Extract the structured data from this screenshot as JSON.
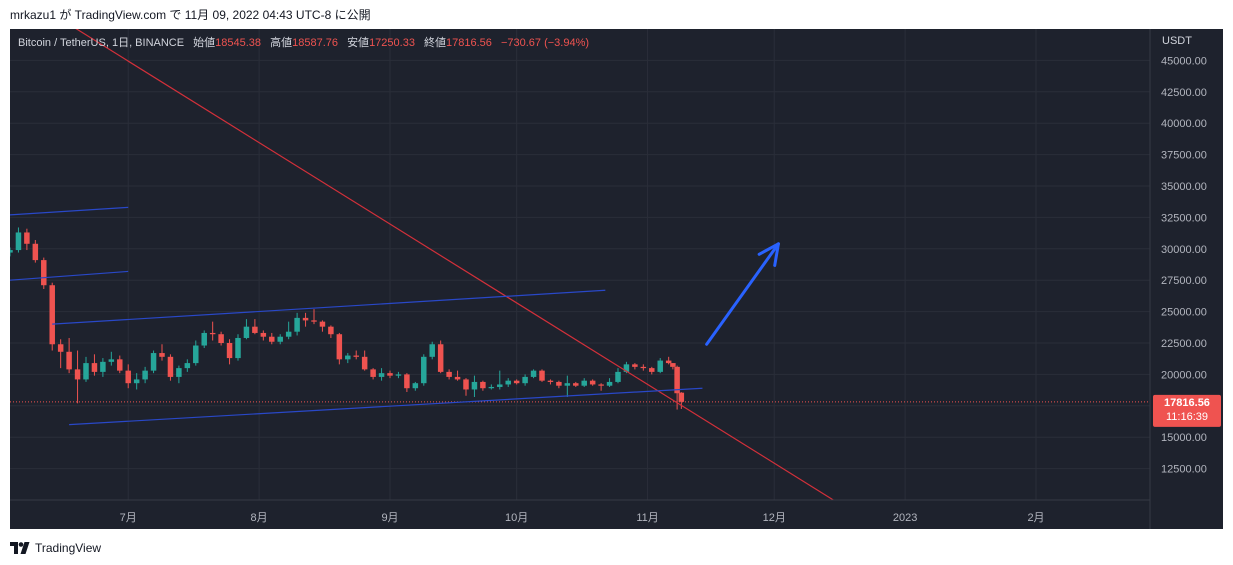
{
  "header": {
    "published_by": "mrkazu1 が TradingView.com で 11月 09, 2022 04:43 UTC-8 に公開"
  },
  "legend": {
    "symbol": "Bitcoin / TetherUS, 1日, BINANCE",
    "open_label": "始値",
    "open_value": "18545.38",
    "high_label": "高値",
    "high_value": "18587.76",
    "low_label": "安値",
    "low_value": "17250.33",
    "close_label": "終値",
    "close_value": "17816.56",
    "change": "−730.67 (−3.94%)"
  },
  "price_axis": {
    "currency": "USDT",
    "ticks": [
      "45000.00",
      "42500.00",
      "40000.00",
      "37500.00",
      "35000.00",
      "32500.00",
      "30000.00",
      "27500.00",
      "25000.00",
      "22500.00",
      "20000.00",
      "17500.00",
      "15000.00",
      "12500.00"
    ]
  },
  "time_axis": {
    "labels": [
      "7月",
      "8月",
      "9月",
      "10月",
      "11月",
      "12月",
      "2023",
      "2月"
    ]
  },
  "last_price": {
    "price": "17816.56",
    "countdown": "11:16:39"
  },
  "footer": {
    "brand": "TradingView"
  },
  "colors": {
    "background": "#1e222d",
    "up": "#26a69a",
    "down": "#ef5350",
    "grid": "#2a2e39",
    "trendline_red": "#d2303a",
    "channel_blue": "#2948c8",
    "arrow_blue": "#2962ff",
    "last_price_badge": "#ef5350"
  },
  "chart_data": {
    "type": "candlestick",
    "title": "Bitcoin / TetherUS, 1日, BINANCE",
    "xlabel": "",
    "ylabel": "USDT",
    "ylim": [
      10000,
      47500
    ],
    "x_range": [
      "2022-06-03",
      "2023-02-28"
    ],
    "grid": true,
    "candles": [
      {
        "date": "2022-06-03",
        "open": 29700,
        "high": 30100,
        "low": 29400,
        "close": 29900
      },
      {
        "date": "2022-06-05",
        "open": 29900,
        "high": 31700,
        "low": 29700,
        "close": 31300
      },
      {
        "date": "2022-06-07",
        "open": 31300,
        "high": 31600,
        "low": 29900,
        "close": 30400
      },
      {
        "date": "2022-06-09",
        "open": 30400,
        "high": 30700,
        "low": 28900,
        "close": 29100
      },
      {
        "date": "2022-06-11",
        "open": 29100,
        "high": 29300,
        "low": 26800,
        "close": 27100
      },
      {
        "date": "2022-06-13",
        "open": 27100,
        "high": 27300,
        "low": 21900,
        "close": 22400
      },
      {
        "date": "2022-06-15",
        "open": 22400,
        "high": 22800,
        "low": 20500,
        "close": 21800
      },
      {
        "date": "2022-06-17",
        "open": 21800,
        "high": 22900,
        "low": 20100,
        "close": 20400
      },
      {
        "date": "2022-06-19",
        "open": 20400,
        "high": 21900,
        "low": 17700,
        "close": 19600
      },
      {
        "date": "2022-06-21",
        "open": 19600,
        "high": 21400,
        "low": 19400,
        "close": 20900
      },
      {
        "date": "2022-06-23",
        "open": 20900,
        "high": 21600,
        "low": 19900,
        "close": 20200
      },
      {
        "date": "2022-06-25",
        "open": 20200,
        "high": 21300,
        "low": 19800,
        "close": 21000
      },
      {
        "date": "2022-06-27",
        "open": 21000,
        "high": 21800,
        "low": 20700,
        "close": 21200
      },
      {
        "date": "2022-06-29",
        "open": 21200,
        "high": 21500,
        "low": 20100,
        "close": 20300
      },
      {
        "date": "2022-07-01",
        "open": 20300,
        "high": 20800,
        "low": 18900,
        "close": 19300
      },
      {
        "date": "2022-07-03",
        "open": 19300,
        "high": 20100,
        "low": 18800,
        "close": 19600
      },
      {
        "date": "2022-07-05",
        "open": 19600,
        "high": 20600,
        "low": 19300,
        "close": 20300
      },
      {
        "date": "2022-07-07",
        "open": 20300,
        "high": 21900,
        "low": 20100,
        "close": 21700
      },
      {
        "date": "2022-07-09",
        "open": 21700,
        "high": 22400,
        "low": 21100,
        "close": 21400
      },
      {
        "date": "2022-07-11",
        "open": 21400,
        "high": 21600,
        "low": 19500,
        "close": 19800
      },
      {
        "date": "2022-07-13",
        "open": 19800,
        "high": 20700,
        "low": 19300,
        "close": 20500
      },
      {
        "date": "2022-07-15",
        "open": 20500,
        "high": 21200,
        "low": 20200,
        "close": 20900
      },
      {
        "date": "2022-07-17",
        "open": 20900,
        "high": 22700,
        "low": 20700,
        "close": 22300
      },
      {
        "date": "2022-07-19",
        "open": 22300,
        "high": 23500,
        "low": 22100,
        "close": 23300
      },
      {
        "date": "2022-07-21",
        "open": 23300,
        "high": 24200,
        "low": 22700,
        "close": 23200
      },
      {
        "date": "2022-07-23",
        "open": 23200,
        "high": 23400,
        "low": 22300,
        "close": 22500
      },
      {
        "date": "2022-07-25",
        "open": 22500,
        "high": 22800,
        "low": 20800,
        "close": 21300
      },
      {
        "date": "2022-07-27",
        "open": 21300,
        "high": 23200,
        "low": 21100,
        "close": 22900
      },
      {
        "date": "2022-07-29",
        "open": 22900,
        "high": 24400,
        "low": 22800,
        "close": 23800
      },
      {
        "date": "2022-07-31",
        "open": 23800,
        "high": 24400,
        "low": 23200,
        "close": 23300
      },
      {
        "date": "2022-08-02",
        "open": 23300,
        "high": 23500,
        "low": 22700,
        "close": 23000
      },
      {
        "date": "2022-08-04",
        "open": 23000,
        "high": 23300,
        "low": 22400,
        "close": 22600
      },
      {
        "date": "2022-08-06",
        "open": 22600,
        "high": 23200,
        "low": 22400,
        "close": 23000
      },
      {
        "date": "2022-08-08",
        "open": 23000,
        "high": 24200,
        "low": 22800,
        "close": 23400
      },
      {
        "date": "2022-08-10",
        "open": 23400,
        "high": 24900,
        "low": 23100,
        "close": 24500
      },
      {
        "date": "2022-08-12",
        "open": 24500,
        "high": 24900,
        "low": 23800,
        "close": 24300
      },
      {
        "date": "2022-08-14",
        "open": 24300,
        "high": 25200,
        "low": 24000,
        "close": 24200
      },
      {
        "date": "2022-08-16",
        "open": 24200,
        "high": 24300,
        "low": 23400,
        "close": 23800
      },
      {
        "date": "2022-08-18",
        "open": 23800,
        "high": 23900,
        "low": 22900,
        "close": 23200
      },
      {
        "date": "2022-08-20",
        "open": 23200,
        "high": 23300,
        "low": 20800,
        "close": 21200
      },
      {
        "date": "2022-08-22",
        "open": 21200,
        "high": 21700,
        "low": 20900,
        "close": 21500
      },
      {
        "date": "2022-08-24",
        "open": 21500,
        "high": 21900,
        "low": 21200,
        "close": 21400
      },
      {
        "date": "2022-08-26",
        "open": 21400,
        "high": 21900,
        "low": 20300,
        "close": 20400
      },
      {
        "date": "2022-08-28",
        "open": 20400,
        "high": 20500,
        "low": 19600,
        "close": 19800
      },
      {
        "date": "2022-08-30",
        "open": 19800,
        "high": 20500,
        "low": 19500,
        "close": 20100
      },
      {
        "date": "2022-09-01",
        "open": 20100,
        "high": 20300,
        "low": 19700,
        "close": 19900
      },
      {
        "date": "2022-09-03",
        "open": 19900,
        "high": 20200,
        "low": 19700,
        "close": 20000
      },
      {
        "date": "2022-09-05",
        "open": 20000,
        "high": 20100,
        "low": 18600,
        "close": 18900
      },
      {
        "date": "2022-09-07",
        "open": 18900,
        "high": 19400,
        "low": 18700,
        "close": 19300
      },
      {
        "date": "2022-09-09",
        "open": 19300,
        "high": 21600,
        "low": 19100,
        "close": 21400
      },
      {
        "date": "2022-09-11",
        "open": 21400,
        "high": 22600,
        "low": 21200,
        "close": 22400
      },
      {
        "date": "2022-09-13",
        "open": 22400,
        "high": 22700,
        "low": 20100,
        "close": 20200
      },
      {
        "date": "2022-09-15",
        "open": 20200,
        "high": 20400,
        "low": 19600,
        "close": 19800
      },
      {
        "date": "2022-09-17",
        "open": 19800,
        "high": 20300,
        "low": 19500,
        "close": 19600
      },
      {
        "date": "2022-09-19",
        "open": 19600,
        "high": 19700,
        "low": 18300,
        "close": 18800
      },
      {
        "date": "2022-09-21",
        "open": 18800,
        "high": 19900,
        "low": 18200,
        "close": 19400
      },
      {
        "date": "2022-09-23",
        "open": 19400,
        "high": 19500,
        "low": 18700,
        "close": 18900
      },
      {
        "date": "2022-09-25",
        "open": 18900,
        "high": 19200,
        "low": 18800,
        "close": 19000
      },
      {
        "date": "2022-09-27",
        "open": 19000,
        "high": 20300,
        "low": 18800,
        "close": 19200
      },
      {
        "date": "2022-09-29",
        "open": 19200,
        "high": 19700,
        "low": 19000,
        "close": 19500
      },
      {
        "date": "2022-10-01",
        "open": 19500,
        "high": 19600,
        "low": 19200,
        "close": 19300
      },
      {
        "date": "2022-10-03",
        "open": 19300,
        "high": 20000,
        "low": 19100,
        "close": 19800
      },
      {
        "date": "2022-10-05",
        "open": 19800,
        "high": 20400,
        "low": 19700,
        "close": 20300
      },
      {
        "date": "2022-10-07",
        "open": 20300,
        "high": 20400,
        "low": 19400,
        "close": 19500
      },
      {
        "date": "2022-10-09",
        "open": 19500,
        "high": 19600,
        "low": 19200,
        "close": 19400
      },
      {
        "date": "2022-10-11",
        "open": 19400,
        "high": 19500,
        "low": 18900,
        "close": 19100
      },
      {
        "date": "2022-10-13",
        "open": 19100,
        "high": 19900,
        "low": 18200,
        "close": 19300
      },
      {
        "date": "2022-10-15",
        "open": 19300,
        "high": 19400,
        "low": 19000,
        "close": 19100
      },
      {
        "date": "2022-10-17",
        "open": 19100,
        "high": 19700,
        "low": 19000,
        "close": 19500
      },
      {
        "date": "2022-10-19",
        "open": 19500,
        "high": 19600,
        "low": 19100,
        "close": 19200
      },
      {
        "date": "2022-10-21",
        "open": 19200,
        "high": 19300,
        "low": 18700,
        "close": 19100
      },
      {
        "date": "2022-10-23",
        "open": 19100,
        "high": 19700,
        "low": 19000,
        "close": 19400
      },
      {
        "date": "2022-10-25",
        "open": 19400,
        "high": 20500,
        "low": 19300,
        "close": 20200
      },
      {
        "date": "2022-10-27",
        "open": 20200,
        "high": 21000,
        "low": 20100,
        "close": 20800
      },
      {
        "date": "2022-10-29",
        "open": 20800,
        "high": 20900,
        "low": 20400,
        "close": 20600
      },
      {
        "date": "2022-10-31",
        "open": 20600,
        "high": 20800,
        "low": 20300,
        "close": 20500
      },
      {
        "date": "2022-11-02",
        "open": 20500,
        "high": 20600,
        "low": 20000,
        "close": 20200
      },
      {
        "date": "2022-11-04",
        "open": 20200,
        "high": 21300,
        "low": 20100,
        "close": 21100
      },
      {
        "date": "2022-11-06",
        "open": 21100,
        "high": 21400,
        "low": 20800,
        "close": 20900
      },
      {
        "date": "2022-11-07",
        "open": 20900,
        "high": 20900,
        "low": 20400,
        "close": 20600
      },
      {
        "date": "2022-11-08",
        "open": 20600,
        "high": 20700,
        "low": 17200,
        "close": 18500
      },
      {
        "date": "2022-11-09",
        "open": 18545.38,
        "high": 18587.76,
        "low": 17250.33,
        "close": 17816.56
      }
    ],
    "drawings": [
      {
        "kind": "trendline",
        "color": "red",
        "from": {
          "date": "2022-06-14",
          "price": 48500
        },
        "to": {
          "date": "2022-12-15",
          "price": 10000
        }
      },
      {
        "kind": "channel-line",
        "color": "blue",
        "from": {
          "date": "2022-06-03",
          "price": 32700
        },
        "to": {
          "date": "2022-07-01",
          "price": 33300
        }
      },
      {
        "kind": "channel-line",
        "color": "blue",
        "from": {
          "date": "2022-06-03",
          "price": 27500
        },
        "to": {
          "date": "2022-07-01",
          "price": 28200
        }
      },
      {
        "kind": "channel-line",
        "color": "blue",
        "from": {
          "date": "2022-06-13",
          "price": 24000
        },
        "to": {
          "date": "2022-10-22",
          "price": 26700
        }
      },
      {
        "kind": "channel-line",
        "color": "blue",
        "from": {
          "date": "2022-06-17",
          "price": 16000
        },
        "to": {
          "date": "2022-11-14",
          "price": 18900
        }
      },
      {
        "kind": "arrow",
        "color": "blue",
        "from": {
          "date": "2022-11-15",
          "price": 22400
        },
        "to": {
          "date": "2022-12-02",
          "price": 30400
        }
      }
    ]
  }
}
